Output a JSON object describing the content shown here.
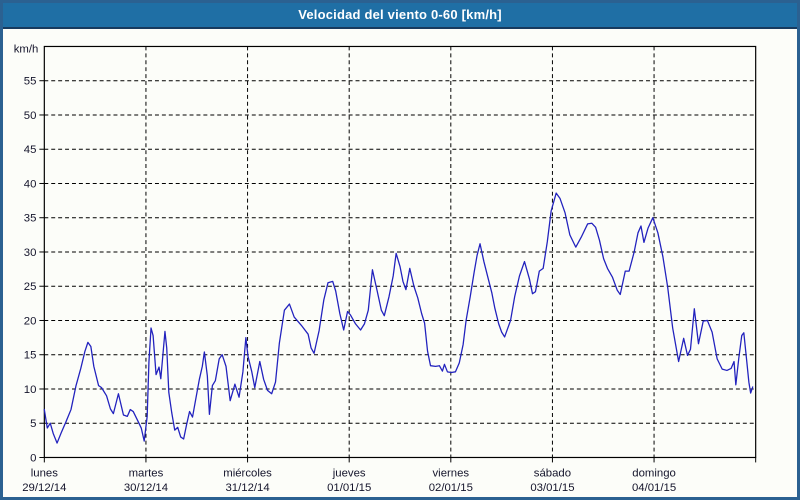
{
  "window": {
    "title": "Velocidad del viento 0-60 [km/h]"
  },
  "colors": {
    "titlebar_bg": "#1F6FA5",
    "titlebar_underline": "#173A5E",
    "window_border": "#2B6191",
    "window_bg": "#FCFDF9",
    "line": "#2222BE",
    "grid": "#000000",
    "axis_text": "#14142B",
    "title_text": "#FFFFFF"
  },
  "axes": {
    "y_unit_label": "km/h",
    "y_ticks": [
      0,
      5,
      10,
      15,
      20,
      25,
      30,
      35,
      40,
      45,
      50,
      55
    ],
    "x_ticks": [
      {
        "day": "lunes",
        "date": "29/12/14",
        "hour": 0
      },
      {
        "day": "martes",
        "date": "30/12/14",
        "hour": 24
      },
      {
        "day": "miércoles",
        "date": "31/12/14",
        "hour": 48
      },
      {
        "day": "jueves",
        "date": "01/01/15",
        "hour": 72
      },
      {
        "day": "viernes",
        "date": "02/01/15",
        "hour": 96
      },
      {
        "day": "sábado",
        "date": "03/01/15",
        "hour": 120
      },
      {
        "day": "domingo",
        "date": "04/01/15",
        "hour": 144
      }
    ]
  },
  "chart_data": {
    "type": "line",
    "title": "Velocidad del viento 0-60 [km/h]",
    "ylabel": "km/h",
    "ylim": [
      0,
      60
    ],
    "xlim_hours": [
      0,
      168
    ],
    "x_day_boundaries_hours": [
      0,
      24,
      48,
      72,
      96,
      120,
      144,
      168
    ],
    "grid": "dashed",
    "legend": "none",
    "series": [
      {
        "name": "wind-speed-kmh",
        "points": [
          [
            0.0,
            7.0
          ],
          [
            0.7,
            4.3
          ],
          [
            1.4,
            5.0
          ],
          [
            2.1,
            3.5
          ],
          [
            3.0,
            2.1
          ],
          [
            4.0,
            3.6
          ],
          [
            5.1,
            5.2
          ],
          [
            6.3,
            7.0
          ],
          [
            7.5,
            10.5
          ],
          [
            8.6,
            13.0
          ],
          [
            9.6,
            15.5
          ],
          [
            10.3,
            16.8
          ],
          [
            11.0,
            16.2
          ],
          [
            11.7,
            13.3
          ],
          [
            12.8,
            10.5
          ],
          [
            13.5,
            10.2
          ],
          [
            14.7,
            9.0
          ],
          [
            15.6,
            7.1
          ],
          [
            16.3,
            6.4
          ],
          [
            17.5,
            9.3
          ],
          [
            18.7,
            6.2
          ],
          [
            19.6,
            6.0
          ],
          [
            20.3,
            7.0
          ],
          [
            21.0,
            6.7
          ],
          [
            22.2,
            5.2
          ],
          [
            22.9,
            4.3
          ],
          [
            23.6,
            2.4
          ],
          [
            24.3,
            6.0
          ],
          [
            24.7,
            14.0
          ],
          [
            25.2,
            18.9
          ],
          [
            25.7,
            17.8
          ],
          [
            26.4,
            12.1
          ],
          [
            27.1,
            13.2
          ],
          [
            27.5,
            11.5
          ],
          [
            28.5,
            18.4
          ],
          [
            28.9,
            16.0
          ],
          [
            29.4,
            9.5
          ],
          [
            30.1,
            6.5
          ],
          [
            30.8,
            4.0
          ],
          [
            31.5,
            4.4
          ],
          [
            32.2,
            3.0
          ],
          [
            32.9,
            2.7
          ],
          [
            33.6,
            4.8
          ],
          [
            34.3,
            6.7
          ],
          [
            35.0,
            5.9
          ],
          [
            35.7,
            8.3
          ],
          [
            36.6,
            11.4
          ],
          [
            37.3,
            13.3
          ],
          [
            37.8,
            15.4
          ],
          [
            38.5,
            11.9
          ],
          [
            39.0,
            6.3
          ],
          [
            39.7,
            10.5
          ],
          [
            40.4,
            11.2
          ],
          [
            41.3,
            14.4
          ],
          [
            42.0,
            15.0
          ],
          [
            42.9,
            13.3
          ],
          [
            43.9,
            8.3
          ],
          [
            45.0,
            10.7
          ],
          [
            46.0,
            8.8
          ],
          [
            46.9,
            12.5
          ],
          [
            47.6,
            17.5
          ],
          [
            48.1,
            14.8
          ],
          [
            49.0,
            12.5
          ],
          [
            49.7,
            10.2
          ],
          [
            50.9,
            14.0
          ],
          [
            51.8,
            11.4
          ],
          [
            52.7,
            9.8
          ],
          [
            53.7,
            9.3
          ],
          [
            54.6,
            11.0
          ],
          [
            55.5,
            16.7
          ],
          [
            56.7,
            21.5
          ],
          [
            57.9,
            22.4
          ],
          [
            59.0,
            20.5
          ],
          [
            60.7,
            19.3
          ],
          [
            62.3,
            18.0
          ],
          [
            63.0,
            16.0
          ],
          [
            63.7,
            15.2
          ],
          [
            64.9,
            18.5
          ],
          [
            66.0,
            23.0
          ],
          [
            67.0,
            25.5
          ],
          [
            68.1,
            25.7
          ],
          [
            68.8,
            24.3
          ],
          [
            69.8,
            21.0
          ],
          [
            70.7,
            18.6
          ],
          [
            71.6,
            21.3
          ],
          [
            72.3,
            20.8
          ],
          [
            73.5,
            19.5
          ],
          [
            74.7,
            18.6
          ],
          [
            75.6,
            19.5
          ],
          [
            76.5,
            21.5
          ],
          [
            77.5,
            27.4
          ],
          [
            78.6,
            24.3
          ],
          [
            79.6,
            21.5
          ],
          [
            80.3,
            20.7
          ],
          [
            81.4,
            23.5
          ],
          [
            82.4,
            26.5
          ],
          [
            83.1,
            29.8
          ],
          [
            84.0,
            27.9
          ],
          [
            84.7,
            25.7
          ],
          [
            85.4,
            24.5
          ],
          [
            86.3,
            27.6
          ],
          [
            87.3,
            25.0
          ],
          [
            88.2,
            23.3
          ],
          [
            89.1,
            21.0
          ],
          [
            89.8,
            19.6
          ],
          [
            90.5,
            15.5
          ],
          [
            91.2,
            13.4
          ],
          [
            92.4,
            13.3
          ],
          [
            93.3,
            13.4
          ],
          [
            94.0,
            12.6
          ],
          [
            94.5,
            13.6
          ],
          [
            95.2,
            12.5
          ],
          [
            96.1,
            12.4
          ],
          [
            97.1,
            12.5
          ],
          [
            98.0,
            13.8
          ],
          [
            98.9,
            16.5
          ],
          [
            99.6,
            20.0
          ],
          [
            100.6,
            23.5
          ],
          [
            101.5,
            27.0
          ],
          [
            102.2,
            29.5
          ],
          [
            102.9,
            31.2
          ],
          [
            103.8,
            28.6
          ],
          [
            104.8,
            26.2
          ],
          [
            105.7,
            24.0
          ],
          [
            106.4,
            21.8
          ],
          [
            107.3,
            19.5
          ],
          [
            108.0,
            18.3
          ],
          [
            108.7,
            17.6
          ],
          [
            110.1,
            20.0
          ],
          [
            111.1,
            23.5
          ],
          [
            112.2,
            26.5
          ],
          [
            113.4,
            28.6
          ],
          [
            114.6,
            26.0
          ],
          [
            115.3,
            23.9
          ],
          [
            116.0,
            24.2
          ],
          [
            116.9,
            27.2
          ],
          [
            117.8,
            27.6
          ],
          [
            118.8,
            31.5
          ],
          [
            119.7,
            36.0
          ],
          [
            120.9,
            38.6
          ],
          [
            121.8,
            37.8
          ],
          [
            123.0,
            35.7
          ],
          [
            124.1,
            32.5
          ],
          [
            125.5,
            30.7
          ],
          [
            126.9,
            32.3
          ],
          [
            128.3,
            34.1
          ],
          [
            129.3,
            34.2
          ],
          [
            130.2,
            33.6
          ],
          [
            131.1,
            31.7
          ],
          [
            132.1,
            29.0
          ],
          [
            133.0,
            27.6
          ],
          [
            134.2,
            26.3
          ],
          [
            135.3,
            24.4
          ],
          [
            136.0,
            23.8
          ],
          [
            137.2,
            27.2
          ],
          [
            138.1,
            27.2
          ],
          [
            139.3,
            30.0
          ],
          [
            140.2,
            32.8
          ],
          [
            140.9,
            33.8
          ],
          [
            141.6,
            31.4
          ],
          [
            142.6,
            33.5
          ],
          [
            143.7,
            35.0
          ],
          [
            144.9,
            32.8
          ],
          [
            146.1,
            29.3
          ],
          [
            147.2,
            24.9
          ],
          [
            148.4,
            18.9
          ],
          [
            149.8,
            14.0
          ],
          [
            151.0,
            17.4
          ],
          [
            151.9,
            14.9
          ],
          [
            152.6,
            15.8
          ],
          [
            153.5,
            21.7
          ],
          [
            154.5,
            16.6
          ],
          [
            155.6,
            19.9
          ],
          [
            156.6,
            20.0
          ],
          [
            157.7,
            18.3
          ],
          [
            158.9,
            14.4
          ],
          [
            160.1,
            12.9
          ],
          [
            161.2,
            12.7
          ],
          [
            162.2,
            13.0
          ],
          [
            162.9,
            14.0
          ],
          [
            163.3,
            10.6
          ],
          [
            164.0,
            14.5
          ],
          [
            164.7,
            17.8
          ],
          [
            165.2,
            18.2
          ],
          [
            165.9,
            14.0
          ],
          [
            166.4,
            11.0
          ],
          [
            166.8,
            9.4
          ],
          [
            167.3,
            10.3
          ]
        ]
      }
    ]
  }
}
